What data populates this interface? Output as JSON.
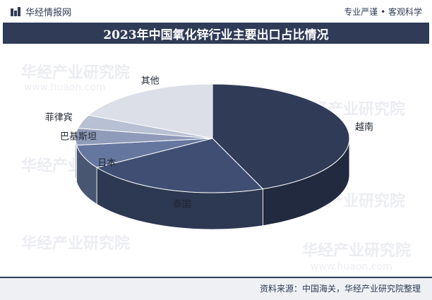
{
  "header": {
    "brand": "华经情报网",
    "slogan": "专业严谨 • 客观科学"
  },
  "chart_data": {
    "type": "pie",
    "title": "2023年中国氧化锌行业主要出口占比情况",
    "categories": [
      "越南",
      "泰国",
      "日本",
      "巴基斯坦",
      "菲律宾",
      "其他"
    ],
    "values": [
      44,
      22,
      7,
      5,
      4,
      18
    ],
    "colors": [
      "#2f3b57",
      "#3f4e72",
      "#66779f",
      "#8f9bb8",
      "#b8c0d3",
      "#dcdfe8"
    ]
  },
  "watermark": {
    "text": "华经产业研究院",
    "url": "www.huaon.com"
  },
  "footer": {
    "source": "资料来源：中国海关，华经产业研究院整理"
  }
}
